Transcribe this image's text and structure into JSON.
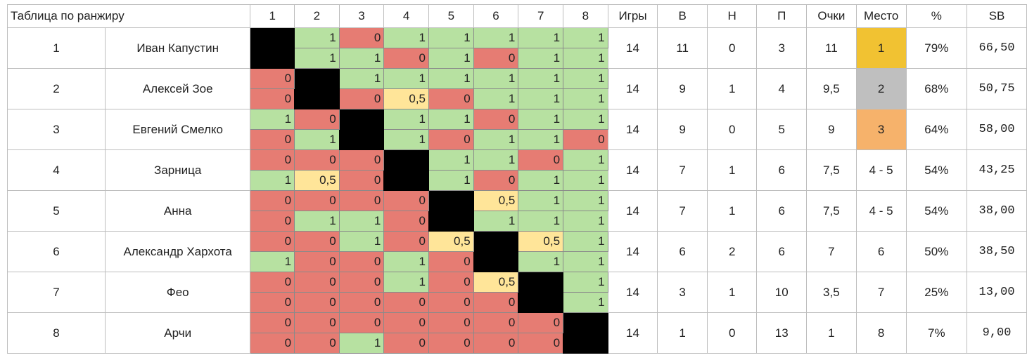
{
  "title": "Таблица по ранжиру",
  "opponent_headers": [
    "1",
    "2",
    "3",
    "4",
    "5",
    "6",
    "7",
    "8"
  ],
  "stat_headers": {
    "games": "Игры",
    "wins": "В",
    "draws": "Н",
    "losses": "П",
    "points": "Очки",
    "place": "Место",
    "pct": "%",
    "sb": "SB"
  },
  "colors": {
    "win": "#b7e1a1",
    "loss": "#e67c73",
    "draw": "#ffe599",
    "gold": "#f1c232",
    "silver": "#bfbfbf",
    "bronze": "#f6b26b",
    "diagonal": "#000000"
  },
  "players": [
    {
      "rank": "1",
      "name": "Иван Капустин",
      "games": "14",
      "wins": "11",
      "draws": "0",
      "losses": "3",
      "points": "11",
      "place": "1",
      "pct": "79%",
      "sb": "66,50",
      "results": [
        [
          null,
          "1",
          "0",
          "1",
          "1",
          "1",
          "1",
          "1"
        ],
        [
          null,
          "1",
          "1",
          "0",
          "1",
          "0",
          "1",
          "1"
        ]
      ]
    },
    {
      "rank": "2",
      "name": "Алексей Зое",
      "games": "14",
      "wins": "9",
      "draws": "1",
      "losses": "4",
      "points": "9,5",
      "place": "2",
      "pct": "68%",
      "sb": "50,75",
      "results": [
        [
          "0",
          null,
          "1",
          "1",
          "1",
          "1",
          "1",
          "1"
        ],
        [
          "0",
          null,
          "0",
          "0,5",
          "0",
          "1",
          "1",
          "1"
        ]
      ]
    },
    {
      "rank": "3",
      "name": "Евгений Смелко",
      "games": "14",
      "wins": "9",
      "draws": "0",
      "losses": "5",
      "points": "9",
      "place": "3",
      "pct": "64%",
      "sb": "58,00",
      "results": [
        [
          "1",
          "0",
          null,
          "1",
          "1",
          "0",
          "1",
          "1"
        ],
        [
          "0",
          "1",
          null,
          "1",
          "0",
          "1",
          "1",
          "0"
        ]
      ]
    },
    {
      "rank": "4",
      "name": "Зарница",
      "games": "14",
      "wins": "7",
      "draws": "1",
      "losses": "6",
      "points": "7,5",
      "place": "4 - 5",
      "pct": "54%",
      "sb": "43,25",
      "results": [
        [
          "0",
          "0",
          "0",
          null,
          "1",
          "1",
          "0",
          "1"
        ],
        [
          "1",
          "0,5",
          "0",
          null,
          "1",
          "0",
          "1",
          "1"
        ]
      ]
    },
    {
      "rank": "5",
      "name": "Анна",
      "games": "14",
      "wins": "7",
      "draws": "1",
      "losses": "6",
      "points": "7,5",
      "place": "4 - 5",
      "pct": "54%",
      "sb": "38,00",
      "results": [
        [
          "0",
          "0",
          "0",
          "0",
          null,
          "0,5",
          "1",
          "1"
        ],
        [
          "0",
          "1",
          "1",
          "0",
          null,
          "1",
          "1",
          "1"
        ]
      ]
    },
    {
      "rank": "6",
      "name": "Александр Хархота",
      "games": "14",
      "wins": "6",
      "draws": "2",
      "losses": "6",
      "points": "7",
      "place": "6",
      "pct": "50%",
      "sb": "38,50",
      "results": [
        [
          "0",
          "0",
          "1",
          "0",
          "0,5",
          null,
          "0,5",
          "1"
        ],
        [
          "1",
          "0",
          "0",
          "1",
          "0",
          null,
          "1",
          "1"
        ]
      ]
    },
    {
      "rank": "7",
      "name": "Фео",
      "games": "14",
      "wins": "3",
      "draws": "1",
      "losses": "10",
      "points": "3,5",
      "place": "7",
      "pct": "25%",
      "sb": "13,00",
      "results": [
        [
          "0",
          "0",
          "0",
          "1",
          "0",
          "0,5",
          null,
          "1"
        ],
        [
          "0",
          "0",
          "0",
          "0",
          "0",
          "0",
          null,
          "1"
        ]
      ]
    },
    {
      "rank": "8",
      "name": "Арчи",
      "games": "14",
      "wins": "1",
      "draws": "0",
      "losses": "13",
      "points": "1",
      "place": "8",
      "pct": "7%",
      "sb": "9,00",
      "results": [
        [
          "0",
          "0",
          "0",
          "0",
          "0",
          "0",
          "0",
          null
        ],
        [
          "0",
          "0",
          "1",
          "0",
          "0",
          "0",
          "0",
          null
        ]
      ]
    }
  ]
}
